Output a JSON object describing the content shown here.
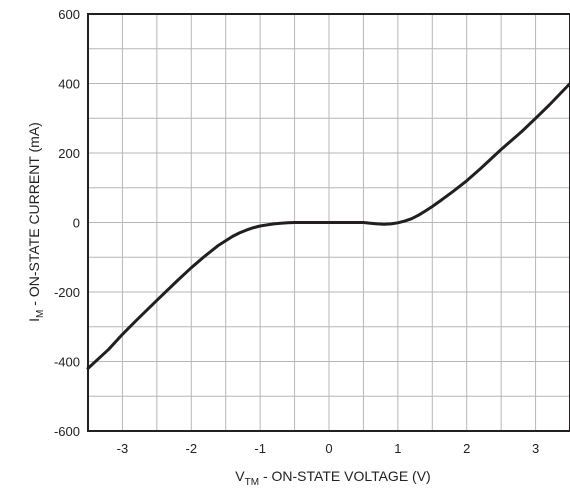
{
  "chart_data": {
    "type": "line",
    "xlabel": {
      "base": "V",
      "sub": "TM",
      "rest": " - ON-STATE VOLTAGE (V)"
    },
    "ylabel": {
      "base": "I",
      "sub": "M",
      "rest": " - ON-STATE CURRENT (mA)"
    },
    "xlim": [
      -3.5,
      3.5
    ],
    "ylim": [
      -600,
      600
    ],
    "xticks": [
      -3,
      -2,
      -1,
      0,
      1,
      2,
      3
    ],
    "yticks": [
      600,
      400,
      200,
      0,
      -200,
      -400,
      -600
    ],
    "grid": true,
    "series": [
      {
        "color": "#231f20",
        "x": [
          -3.5,
          -3.2,
          -3.0,
          -2.8,
          -2.5,
          -2.2,
          -2.0,
          -1.8,
          -1.6,
          -1.4,
          -1.3,
          -1.2,
          -1.1,
          -1.0,
          -0.9,
          -0.8,
          -0.7,
          -0.6,
          -0.5,
          -0.3,
          0.0,
          0.3,
          0.5,
          0.6,
          0.7,
          0.8,
          0.9,
          1.0,
          1.1,
          1.2,
          1.3,
          1.4,
          1.5,
          1.6,
          1.8,
          2.0,
          2.2,
          2.5,
          2.8,
          3.0,
          3.2,
          3.5
        ],
        "y": [
          -420,
          -365,
          -322,
          -282,
          -224,
          -167,
          -130,
          -96,
          -65,
          -40,
          -30,
          -22,
          -15,
          -10,
          -7,
          -4,
          -2,
          -1,
          0,
          0,
          0,
          0,
          0,
          -2,
          -4,
          -5,
          -4,
          -1,
          4,
          11,
          21,
          33,
          46,
          60,
          89,
          120,
          155,
          210,
          262,
          300,
          338,
          400
        ]
      }
    ]
  }
}
